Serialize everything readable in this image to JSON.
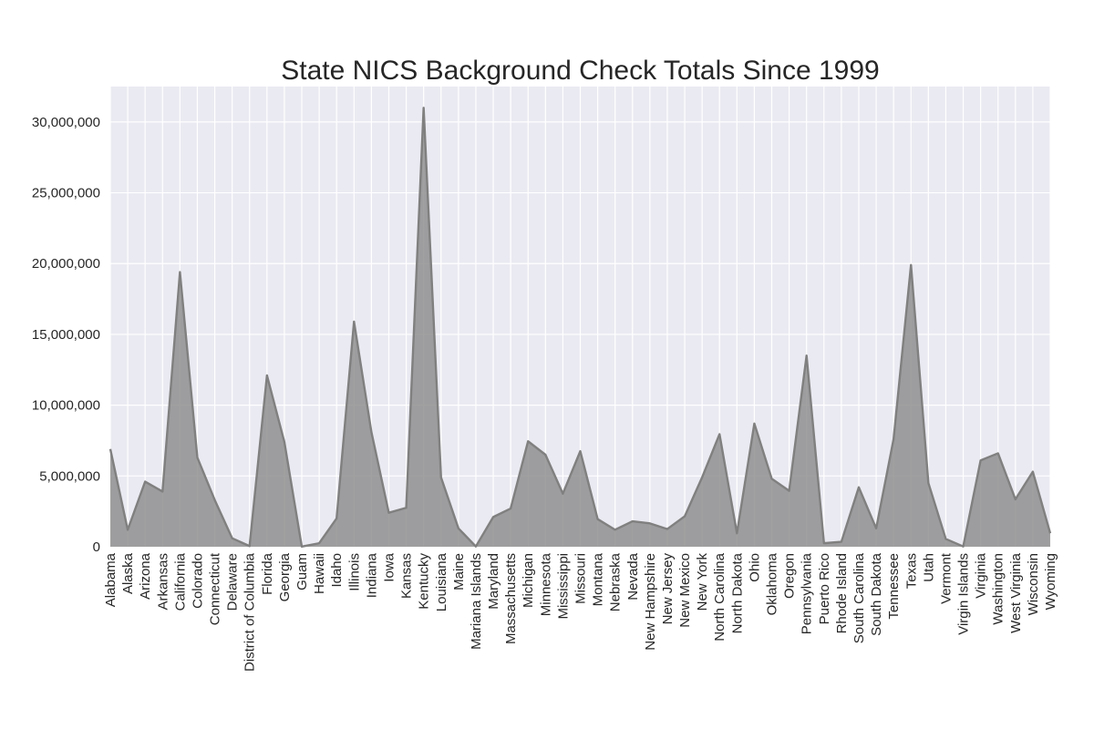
{
  "chart_data": {
    "type": "area",
    "title": "State NICS Background Check Totals Since 1999",
    "xlabel": "",
    "ylabel": "",
    "ylim": [
      0,
      32500000
    ],
    "yticks": [
      0,
      5000000,
      10000000,
      15000000,
      20000000,
      25000000,
      30000000
    ],
    "ytick_labels": [
      "0",
      "5,000,000",
      "10,000,000",
      "15,000,000",
      "20,000,000",
      "25,000,000",
      "30,000,000"
    ],
    "grid": true,
    "legend": "none",
    "colors": {
      "background": "#eaeaf2",
      "grid": "#ffffff",
      "fill": "#8c8c8c",
      "line": "#808080"
    },
    "categories": [
      "Alabama",
      "Alaska",
      "Arizona",
      "Arkansas",
      "California",
      "Colorado",
      "Connecticut",
      "Delaware",
      "District of Columbia",
      "Florida",
      "Georgia",
      "Guam",
      "Hawaii",
      "Idaho",
      "Illinois",
      "Indiana",
      "Iowa",
      "Kansas",
      "Kentucky",
      "Louisiana",
      "Maine",
      "Mariana Islands",
      "Maryland",
      "Massachusetts",
      "Michigan",
      "Minnesota",
      "Mississippi",
      "Missouri",
      "Montana",
      "Nebraska",
      "Nevada",
      "New Hampshire",
      "New Jersey",
      "New Mexico",
      "New York",
      "North Carolina",
      "North Dakota",
      "Ohio",
      "Oklahoma",
      "Oregon",
      "Pennsylvania",
      "Puerto Rico",
      "Rhode Island",
      "South Carolina",
      "South Dakota",
      "Tennessee",
      "Texas",
      "Utah",
      "Vermont",
      "Virgin Islands",
      "Virginia",
      "Washington",
      "West Virginia",
      "Wisconsin",
      "Wyoming"
    ],
    "values": [
      6900000,
      1200000,
      4600000,
      3900000,
      19400000,
      6300000,
      3300000,
      600000,
      50000,
      12100000,
      7400000,
      10000,
      250000,
      2000000,
      15900000,
      8100000,
      2400000,
      2750000,
      31000000,
      4900000,
      1300000,
      20000,
      2100000,
      2700000,
      7450000,
      6500000,
      3750000,
      6750000,
      1950000,
      1200000,
      1800000,
      1650000,
      1250000,
      2150000,
      4900000,
      7950000,
      950000,
      8700000,
      4800000,
      3950000,
      13500000,
      250000,
      350000,
      4200000,
      1300000,
      7600000,
      19900000,
      4500000,
      550000,
      20000,
      6100000,
      6600000,
      3350000,
      5300000,
      950000
    ]
  }
}
